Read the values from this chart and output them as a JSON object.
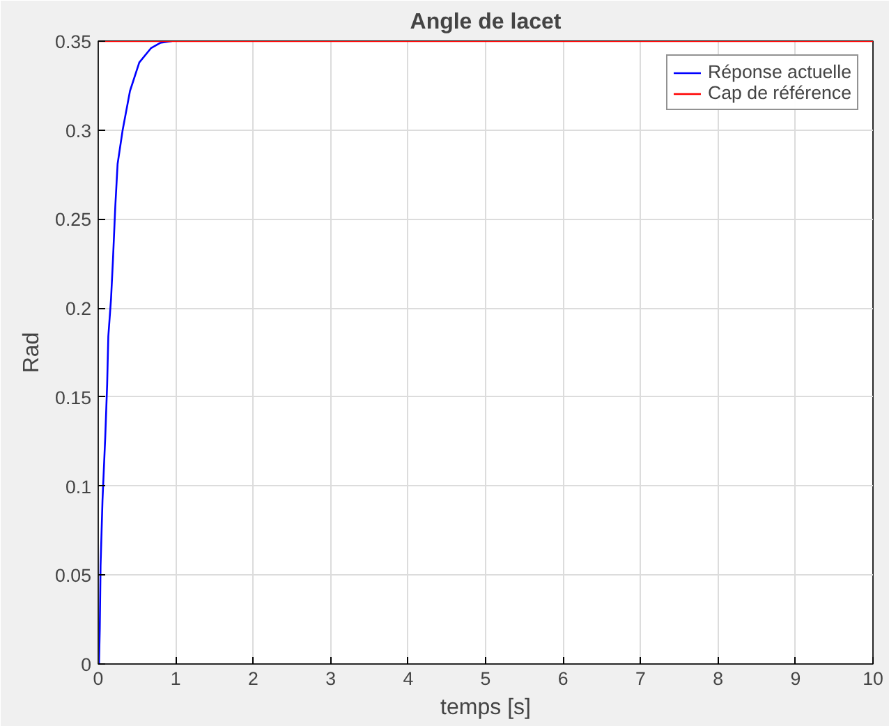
{
  "chart_data": {
    "type": "line",
    "title": "Angle de lacet",
    "xlabel": "temps [s]",
    "ylabel": "Rad",
    "series": [
      {
        "name": "Réponse actuelle",
        "color": "#0000ff",
        "x": [
          0,
          0.01,
          0.02,
          0.03,
          0.055,
          0.09,
          0.115,
          0.13,
          0.165,
          0.19,
          0.22,
          0.25,
          0.315,
          0.41,
          0.53,
          0.68,
          0.8,
          0.95
        ],
        "values": [
          0,
          0.0,
          0.02,
          0.055,
          0.092,
          0.127,
          0.157,
          0.184,
          0.205,
          0.227,
          0.257,
          0.281,
          0.3,
          0.322,
          0.338,
          0.346,
          0.349,
          0.35
        ]
      },
      {
        "name": "Cap de référence",
        "color": "#ff0000",
        "x": [
          0,
          10
        ],
        "values": [
          0.35,
          0.35
        ]
      }
    ],
    "xlim": [
      0,
      10
    ],
    "ylim": [
      0,
      0.35
    ],
    "xticks": [
      0,
      1,
      2,
      3,
      4,
      5,
      6,
      7,
      8,
      9,
      10
    ],
    "yticks": [
      0,
      0.05,
      0.1,
      0.15,
      0.2,
      0.25,
      0.3,
      0.35
    ],
    "grid": true,
    "legend": "top right",
    "line_style": "solid",
    "marker": "none"
  }
}
